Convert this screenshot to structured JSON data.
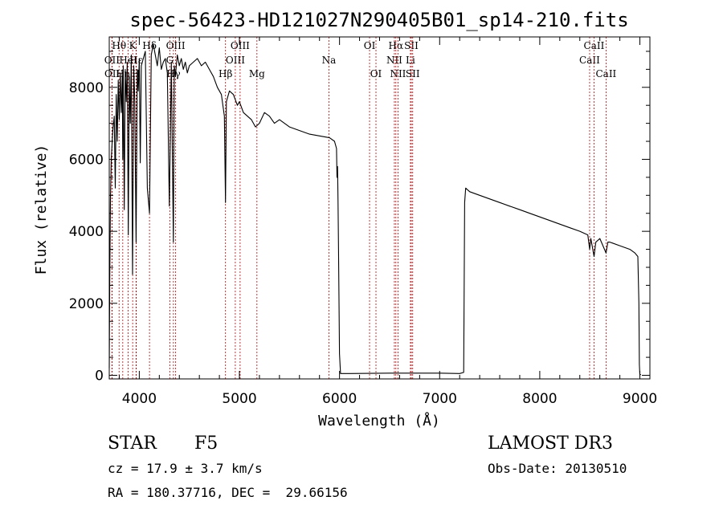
{
  "chart_data": {
    "type": "line",
    "title": "spec-56423-HD121027N290405B01_sp14-210.fits",
    "xlabel": "Wavelength (Å)",
    "ylabel": "Flux (relative)",
    "xlim": [
      3700,
      9100
    ],
    "ylim": [
      -100,
      9400
    ],
    "xticks": [
      4000,
      5000,
      6000,
      7000,
      8000,
      9000
    ],
    "yticks": [
      0,
      2000,
      4000,
      6000,
      8000
    ],
    "series": [
      {
        "name": "flux",
        "x": [
          3700,
          3705,
          3712,
          3720,
          3735,
          3750,
          3760,
          3770,
          3780,
          3790,
          3800,
          3810,
          3820,
          3830,
          3835,
          3840,
          3850,
          3860,
          3870,
          3880,
          3890,
          3900,
          3910,
          3920,
          3933,
          3945,
          3955,
          3968,
          3980,
          3990,
          4000,
          4010,
          4020,
          4040,
          4060,
          4080,
          4102,
          4120,
          4140,
          4160,
          4180,
          4200,
          4220,
          4240,
          4260,
          4280,
          4300,
          4320,
          4340,
          4350,
          4360,
          4380,
          4400,
          4420,
          4440,
          4460,
          4480,
          4500,
          4540,
          4580,
          4620,
          4660,
          4700,
          4740,
          4780,
          4820,
          4850,
          4861,
          4870,
          4900,
          4940,
          4980,
          5000,
          5040,
          5080,
          5120,
          5160,
          5200,
          5250,
          5300,
          5350,
          5400,
          5500,
          5600,
          5700,
          5800,
          5900,
          5950,
          5970,
          5975,
          5980,
          5985,
          5990,
          6000,
          6010,
          6100,
          6500,
          7000,
          7200,
          7240,
          7250,
          7260,
          7280,
          7300,
          7400,
          7500,
          7600,
          7700,
          7800,
          7900,
          8000,
          8100,
          8200,
          8300,
          8400,
          8480,
          8498,
          8510,
          8542,
          8560,
          8580,
          8600,
          8662,
          8680,
          8700,
          8800,
          8900,
          8950,
          8980,
          8990,
          8995,
          9000,
          9005,
          9010
        ],
        "values": [
          200,
          2600,
          4900,
          6000,
          6800,
          7200,
          5200,
          7800,
          6500,
          8200,
          7100,
          8400,
          7300,
          8300,
          6000,
          8600,
          4600,
          8500,
          7600,
          8700,
          3900,
          8300,
          7000,
          8900,
          2800,
          8600,
          7600,
          3700,
          8500,
          7900,
          8800,
          5900,
          8600,
          8800,
          9000,
          5200,
          4500,
          8900,
          9200,
          8900,
          8600,
          9100,
          8500,
          8700,
          8800,
          8400,
          4700,
          8700,
          3700,
          8600,
          8300,
          8900,
          8600,
          8800,
          8500,
          8700,
          8400,
          8600,
          8700,
          8800,
          8600,
          8700,
          8500,
          8300,
          8000,
          7800,
          7200,
          4800,
          7600,
          7900,
          7800,
          7500,
          7600,
          7300,
          7200,
          7100,
          6900,
          7000,
          7300,
          7200,
          7000,
          7100,
          6900,
          6800,
          6700,
          6650,
          6600,
          6500,
          6300,
          5500,
          5800,
          4800,
          3500,
          600,
          50,
          50,
          60,
          60,
          50,
          80,
          4800,
          5200,
          5150,
          5100,
          5000,
          4900,
          4800,
          4700,
          4600,
          4500,
          4400,
          4300,
          4200,
          4100,
          4000,
          3900,
          3500,
          3800,
          3300,
          3700,
          3750,
          3800,
          3400,
          3700,
          3700,
          3600,
          3500,
          3400,
          3300,
          2000,
          300,
          20,
          20,
          20
        ]
      }
    ],
    "spectral_lines": [
      {
        "name": "Hθ",
        "wl": 3798,
        "row": 0
      },
      {
        "name": "OII",
        "wl": 3727,
        "row": 1
      },
      {
        "name": "OII",
        "wl": 3729,
        "row": 2
      },
      {
        "name": "Hη",
        "wl": 3835,
        "row": 2
      },
      {
        "name": "HeI",
        "wl": 3889,
        "row": 1
      },
      {
        "name": "K",
        "wl": 3934,
        "row": 0
      },
      {
        "name": "Hε",
        "wl": 3970,
        "row": 1
      },
      {
        "name": "H",
        "wl": 3968,
        "row": 2
      },
      {
        "name": "Hδ",
        "wl": 4102,
        "row": 0
      },
      {
        "name": "G",
        "wl": 4305,
        "row": 1
      },
      {
        "name": "Hγ",
        "wl": 4341,
        "row": 2
      },
      {
        "name": "OIII",
        "wl": 4363,
        "row": 0
      },
      {
        "name": "Hβ",
        "wl": 4861,
        "row": 2
      },
      {
        "name": "OIII",
        "wl": 4959,
        "row": 1
      },
      {
        "name": "OIII",
        "wl": 5007,
        "row": 0
      },
      {
        "name": "Mg",
        "wl": 5175,
        "row": 2
      },
      {
        "name": "Na",
        "wl": 5894,
        "row": 1
      },
      {
        "name": "OI",
        "wl": 6300,
        "row": 0
      },
      {
        "name": "OI",
        "wl": 6364,
        "row": 2
      },
      {
        "name": "NII",
        "wl": 6548,
        "row": 1
      },
      {
        "name": "Hα",
        "wl": 6563,
        "row": 0
      },
      {
        "name": "NII",
        "wl": 6584,
        "row": 2
      },
      {
        "name": "Li",
        "wl": 6708,
        "row": 1
      },
      {
        "name": "SII",
        "wl": 6717,
        "row": 0
      },
      {
        "name": "SII",
        "wl": 6731,
        "row": 2
      },
      {
        "name": "CaII",
        "wl": 8498,
        "row": 1
      },
      {
        "name": "CaII",
        "wl": 8542,
        "row": 0
      },
      {
        "name": "CaII",
        "wl": 8662,
        "row": 2
      }
    ]
  },
  "info": {
    "class": "STAR",
    "subclass": "F5",
    "survey": "LAMOST DR3",
    "cz": "cz = 17.9 ± 3.7 km/s",
    "obs_date": "Obs-Date: 20130510",
    "coords": "RA = 180.37716, DEC =  29.66156"
  }
}
